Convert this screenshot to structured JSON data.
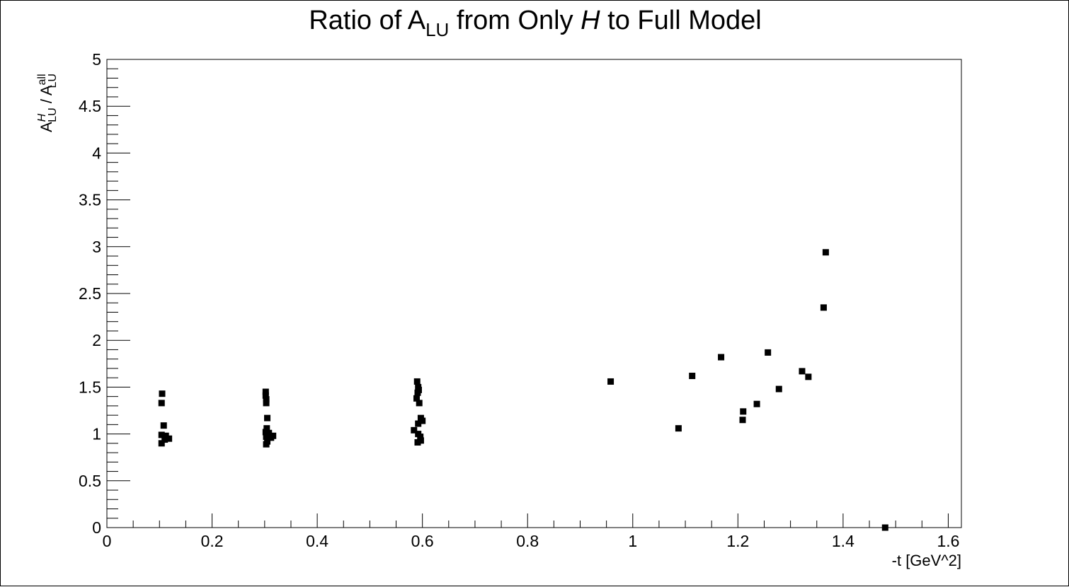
{
  "chart_data": {
    "type": "scatter",
    "title": {
      "pre": "Ratio of A",
      "sub": "LU",
      "mid": " from Only ",
      "italic": "H",
      "post": " to Full Model"
    },
    "xlabel": "-t [GeV^2]",
    "ylabel": {
      "num_main": "A",
      "num_sup": "H",
      "num_sub": "LU",
      "slash": " / ",
      "den_main": "A",
      "den_sup": "all",
      "den_sub": "LU"
    },
    "xlim": [
      0,
      1.62
    ],
    "ylim": [
      0,
      5
    ],
    "x_major_ticks": [
      0,
      0.2,
      0.4,
      0.6,
      0.8,
      1,
      1.2,
      1.4,
      1.6
    ],
    "x_tick_labels": [
      "0",
      "0.2",
      "0.4",
      "0.6",
      "0.8",
      "1",
      "1.2",
      "1.4",
      "1.6"
    ],
    "y_major_ticks": [
      0,
      0.5,
      1,
      1.5,
      2,
      2.5,
      3,
      3.5,
      4,
      4.5,
      5
    ],
    "y_tick_labels": [
      "0",
      "0.5",
      "1",
      "1.5",
      "2",
      "2.5",
      "3",
      "3.5",
      "4",
      "4.5",
      "5"
    ],
    "grid": false,
    "marker": "square",
    "marker_color": "#000000",
    "points": [
      {
        "x": 0.105,
        "y": 1.43
      },
      {
        "x": 0.104,
        "y": 1.33
      },
      {
        "x": 0.108,
        "y": 1.09
      },
      {
        "x": 0.104,
        "y": 0.99
      },
      {
        "x": 0.112,
        "y": 0.98
      },
      {
        "x": 0.118,
        "y": 0.95
      },
      {
        "x": 0.11,
        "y": 0.94
      },
      {
        "x": 0.104,
        "y": 0.9
      },
      {
        "x": 0.302,
        "y": 1.45
      },
      {
        "x": 0.302,
        "y": 1.41
      },
      {
        "x": 0.303,
        "y": 1.37
      },
      {
        "x": 0.303,
        "y": 1.33
      },
      {
        "x": 0.305,
        "y": 1.17
      },
      {
        "x": 0.304,
        "y": 1.06
      },
      {
        "x": 0.302,
        "y": 1.02
      },
      {
        "x": 0.308,
        "y": 1.01
      },
      {
        "x": 0.316,
        "y": 0.98
      },
      {
        "x": 0.303,
        "y": 0.97
      },
      {
        "x": 0.312,
        "y": 0.96
      },
      {
        "x": 0.305,
        "y": 0.92
      },
      {
        "x": 0.303,
        "y": 0.89
      },
      {
        "x": 0.59,
        "y": 1.56
      },
      {
        "x": 0.592,
        "y": 1.5
      },
      {
        "x": 0.593,
        "y": 1.47
      },
      {
        "x": 0.591,
        "y": 1.44
      },
      {
        "x": 0.589,
        "y": 1.38
      },
      {
        "x": 0.594,
        "y": 1.33
      },
      {
        "x": 0.597,
        "y": 1.17
      },
      {
        "x": 0.6,
        "y": 1.14
      },
      {
        "x": 0.592,
        "y": 1.11
      },
      {
        "x": 0.584,
        "y": 1.04
      },
      {
        "x": 0.592,
        "y": 1.0
      },
      {
        "x": 0.596,
        "y": 0.97
      },
      {
        "x": 0.597,
        "y": 0.93
      },
      {
        "x": 0.591,
        "y": 0.91
      },
      {
        "x": 0.958,
        "y": 1.56
      },
      {
        "x": 1.087,
        "y": 1.06
      },
      {
        "x": 1.113,
        "y": 1.62
      },
      {
        "x": 1.168,
        "y": 1.82
      },
      {
        "x": 1.21,
        "y": 1.24
      },
      {
        "x": 1.209,
        "y": 1.15
      },
      {
        "x": 1.236,
        "y": 1.32
      },
      {
        "x": 1.257,
        "y": 1.87
      },
      {
        "x": 1.278,
        "y": 1.48
      },
      {
        "x": 1.322,
        "y": 1.67
      },
      {
        "x": 1.334,
        "y": 1.61
      },
      {
        "x": 1.363,
        "y": 2.35
      },
      {
        "x": 1.367,
        "y": 2.94
      },
      {
        "x": 1.48,
        "y": 0.0
      }
    ]
  }
}
